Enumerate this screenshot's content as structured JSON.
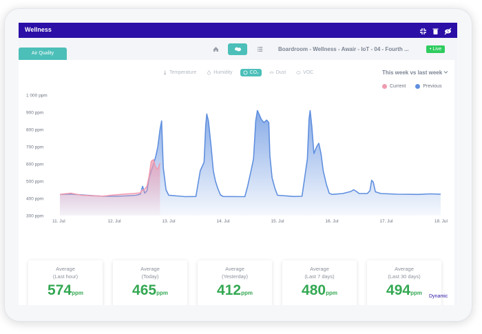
{
  "window": {
    "title": "Wellness",
    "accent": "#2b0fa6"
  },
  "titlebar_icons": [
    "fullscreen-exit-icon",
    "trash-icon",
    "visibility-off-icon"
  ],
  "tabs": {
    "air_quality": "Air Quality"
  },
  "toolbar": {
    "breadcrumb": "Boardroom - Wellness - Awair - IoT - 04 - Fourth ...",
    "live": "• Live"
  },
  "sensor_tabs": [
    {
      "label": "Temperature",
      "icon": "thermometer-icon",
      "active": false
    },
    {
      "label": "Humidity",
      "icon": "droplet-icon",
      "active": false
    },
    {
      "label": "CO₂",
      "icon": "co2-icon",
      "active": true
    },
    {
      "label": "Dust",
      "icon": "dust-icon",
      "active": false
    },
    {
      "label": "VOC",
      "icon": "voc-icon",
      "active": false
    }
  ],
  "range_select": {
    "value": "This week vs last week"
  },
  "legend": [
    {
      "label": "Current",
      "color": "#f09bb0"
    },
    {
      "label": "Previous",
      "color": "#5f8fdf"
    }
  ],
  "chart_data": {
    "type": "area",
    "unit": "ppm",
    "y_ticks": [
      "300 ppm",
      "400 ppm",
      "500 ppm",
      "600 ppm",
      "700 ppm",
      "800 ppm",
      "900 ppm",
      "1 000 ppm"
    ],
    "ylim": [
      300,
      1000
    ],
    "x_ticks": [
      "11. Jul",
      "12. Jul",
      "13. Jul",
      "14. Jul",
      "15. Jul",
      "16. Jul",
      "17. Jul",
      "18. Jul"
    ],
    "xlim": [
      0,
      7
    ],
    "series": [
      {
        "name": "Previous",
        "color": "#5f8fdf",
        "points": [
          [
            0,
            423
          ],
          [
            0.2,
            425
          ],
          [
            0.5,
            418
          ],
          [
            0.8,
            412
          ],
          [
            1.0,
            412
          ],
          [
            1.2,
            414
          ],
          [
            1.4,
            418
          ],
          [
            1.48,
            425
          ],
          [
            1.52,
            470
          ],
          [
            1.56,
            430
          ],
          [
            1.6,
            445
          ],
          [
            1.64,
            520
          ],
          [
            1.7,
            580
          ],
          [
            1.76,
            640
          ],
          [
            1.8,
            700
          ],
          [
            1.84,
            800
          ],
          [
            1.87,
            850
          ],
          [
            1.9,
            580
          ],
          [
            1.95,
            450
          ],
          [
            2.0,
            418
          ],
          [
            2.3,
            410
          ],
          [
            2.5,
            411
          ],
          [
            2.58,
            560
          ],
          [
            2.65,
            610
          ],
          [
            2.68,
            820
          ],
          [
            2.7,
            890
          ],
          [
            2.73,
            850
          ],
          [
            2.78,
            700
          ],
          [
            2.82,
            560
          ],
          [
            2.86,
            500
          ],
          [
            2.9,
            460
          ],
          [
            2.95,
            420
          ],
          [
            3.0,
            411
          ],
          [
            3.3,
            410
          ],
          [
            3.4,
            410
          ],
          [
            3.45,
            470
          ],
          [
            3.52,
            570
          ],
          [
            3.56,
            630
          ],
          [
            3.6,
            850
          ],
          [
            3.63,
            910
          ],
          [
            3.66,
            890
          ],
          [
            3.7,
            860
          ],
          [
            3.75,
            840
          ],
          [
            3.8,
            855
          ],
          [
            3.84,
            840
          ],
          [
            3.86,
            650
          ],
          [
            3.9,
            520
          ],
          [
            3.95,
            460
          ],
          [
            4.0,
            418
          ],
          [
            4.3,
            411
          ],
          [
            4.45,
            412
          ],
          [
            4.5,
            520
          ],
          [
            4.55,
            630
          ],
          [
            4.58,
            860
          ],
          [
            4.6,
            910
          ],
          [
            4.63,
            820
          ],
          [
            4.67,
            660
          ],
          [
            4.72,
            700
          ],
          [
            4.76,
            720
          ],
          [
            4.8,
            660
          ],
          [
            4.84,
            560
          ],
          [
            4.9,
            480
          ],
          [
            4.95,
            430
          ],
          [
            5.0,
            423
          ],
          [
            5.2,
            428
          ],
          [
            5.35,
            440
          ],
          [
            5.4,
            450
          ],
          [
            5.45,
            440
          ],
          [
            5.5,
            428
          ],
          [
            5.65,
            428
          ],
          [
            5.7,
            445
          ],
          [
            5.73,
            505
          ],
          [
            5.76,
            495
          ],
          [
            5.8,
            438
          ],
          [
            5.9,
            428
          ],
          [
            6.2,
            424
          ],
          [
            6.6,
            423
          ],
          [
            6.8,
            426
          ],
          [
            7.0,
            424
          ]
        ]
      },
      {
        "name": "Current",
        "color": "#f09bb0",
        "points": [
          [
            0,
            423
          ],
          [
            0.2,
            430
          ],
          [
            0.4,
            418
          ],
          [
            0.6,
            415
          ],
          [
            0.8,
            413
          ],
          [
            1.0,
            420
          ],
          [
            1.2,
            425
          ],
          [
            1.35,
            428
          ],
          [
            1.48,
            432
          ],
          [
            1.5,
            445
          ],
          [
            1.55,
            450
          ],
          [
            1.6,
            470
          ],
          [
            1.64,
            530
          ],
          [
            1.68,
            615
          ],
          [
            1.72,
            625
          ],
          [
            1.76,
            580
          ],
          [
            1.8,
            570
          ],
          [
            1.84,
            605
          ]
        ]
      }
    ]
  },
  "averages": [
    {
      "label": "Average",
      "period": "(Last hour)",
      "value": "574",
      "unit": "ppm"
    },
    {
      "label": "Average",
      "period": "(Today)",
      "value": "465",
      "unit": "ppm"
    },
    {
      "label": "Average",
      "period": "(Yesterday)",
      "value": "412",
      "unit": "ppm"
    },
    {
      "label": "Average",
      "period": "(Last 7 days)",
      "value": "480",
      "unit": "ppm"
    },
    {
      "label": "Average",
      "period": "(Last 30 days)",
      "value": "494",
      "unit": "ppm"
    }
  ],
  "footer": {
    "mode": "Dynamic"
  }
}
